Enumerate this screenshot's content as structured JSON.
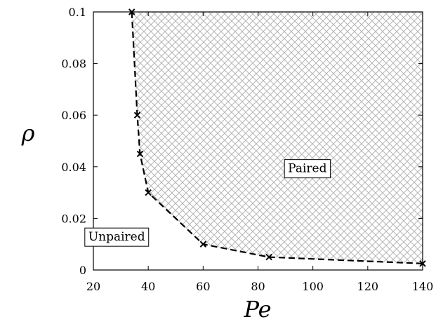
{
  "chart_data": {
    "type": "line",
    "title": "",
    "xlabel": "Pe",
    "ylabel": "ρ",
    "xlim": [
      20,
      140
    ],
    "ylim": [
      0,
      0.1
    ],
    "x_ticks": [
      20,
      40,
      60,
      80,
      100,
      120,
      140
    ],
    "x_tick_labels": [
      "20",
      "40",
      "60",
      "80",
      "100",
      "120",
      "140"
    ],
    "y_ticks": [
      0,
      0.02,
      0.04,
      0.06,
      0.08,
      0.1
    ],
    "y_tick_labels": [
      "0",
      "0.02",
      "0.04",
      "0.06",
      "0.08",
      "0.1"
    ],
    "grid": false,
    "series": [
      {
        "line_style": "dashed",
        "marker": "x",
        "color": "#000000",
        "x": [
          34,
          36,
          37,
          40,
          60,
          84,
          140
        ],
        "y": [
          0.1,
          0.06,
          0.045,
          0.03,
          0.01,
          0.005,
          0.0025
        ]
      }
    ],
    "shaded_region": {
      "pattern": "crosshatch",
      "color": "#b5b5b5",
      "side": "upper-right of boundary"
    },
    "annotations": [
      {
        "text": "Paired",
        "x": 98,
        "y": 0.0395
      },
      {
        "text": "Unpaired",
        "x": 28.5,
        "y": 0.013
      }
    ]
  }
}
